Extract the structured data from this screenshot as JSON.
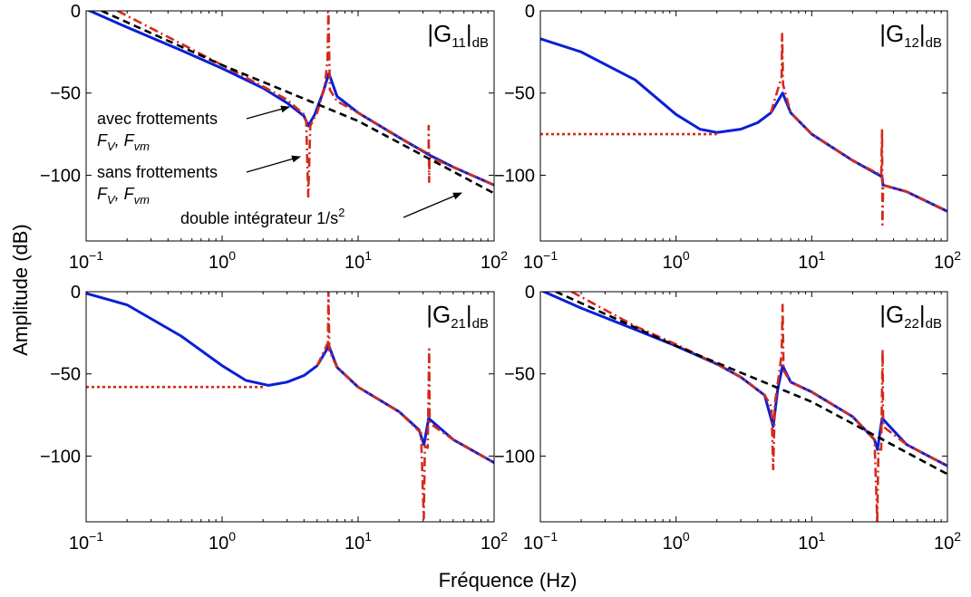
{
  "figure": {
    "ylabel": "Amplitude (dB)",
    "xlabel": "Fréquence (Hz)"
  },
  "chart_data": [
    {
      "type": "line",
      "title": "|G11|dB",
      "xscale": "log",
      "xlim": [
        0.1,
        100
      ],
      "ylim": [
        -140,
        0
      ],
      "xticks": [
        "10^-1",
        "10^0",
        "10^1",
        "10^2"
      ],
      "yticks": [
        "0",
        "-50",
        "-100"
      ],
      "annotations": [
        "avec frottements Fv, Fvm",
        "sans frottements Fv, Fvm",
        "double intégrateur 1/s2"
      ],
      "series": [
        {
          "color": "#0a1fd6",
          "style": "solid",
          "points": [
            [
              0.1,
              1
            ],
            [
              0.2,
              -10
            ],
            [
              0.5,
              -24
            ],
            [
              1,
              -35
            ],
            [
              2,
              -47
            ],
            [
              3,
              -56
            ],
            [
              4,
              -64
            ],
            [
              4.3,
              -70
            ],
            [
              4.8,
              -63
            ],
            [
              5.5,
              -50
            ],
            [
              6.1,
              -38
            ],
            [
              7,
              -52
            ],
            [
              10,
              -62
            ],
            [
              20,
              -77
            ],
            [
              34,
              -88
            ],
            [
              50,
              -95
            ],
            [
              100,
              -106
            ]
          ]
        },
        {
          "color": "#d42a1a",
          "style": "dashdot",
          "points": [
            [
              0.17,
              0
            ],
            [
              0.5,
              -20
            ],
            [
              1,
              -33
            ],
            [
              2,
              -46
            ],
            [
              3,
              -54
            ],
            [
              4,
              -63
            ],
            [
              4.15,
              -67
            ],
            [
              4.3,
              -113
            ],
            [
              4.45,
              -70
            ],
            [
              5,
              -62
            ],
            [
              5.7,
              -45
            ],
            [
              5.95,
              -30
            ],
            [
              6.05,
              0
            ],
            [
              6.2,
              -48
            ],
            [
              7,
              -55
            ],
            [
              10,
              -62
            ],
            [
              20,
              -77
            ],
            [
              33,
              -87
            ],
            [
              33,
              -70
            ],
            [
              33.3,
              -104
            ],
            [
              33.5,
              -89
            ],
            [
              50,
              -95
            ],
            [
              100,
              -106
            ]
          ]
        },
        {
          "color": "#000000",
          "style": "dashed",
          "points": [
            [
              0.13,
              0
            ],
            [
              1,
              -33
            ],
            [
              10,
              -67
            ],
            [
              100,
              -111
            ]
          ]
        }
      ]
    },
    {
      "type": "line",
      "title": "|G12|dB",
      "xscale": "log",
      "xlim": [
        0.1,
        100
      ],
      "ylim": [
        -140,
        0
      ],
      "xticks": [
        "10^-1",
        "10^0",
        "10^1",
        "10^2"
      ],
      "yticks": [
        "0",
        "-50",
        "-100"
      ],
      "series": [
        {
          "color": "#0a1fd6",
          "style": "solid",
          "points": [
            [
              0.1,
              -17
            ],
            [
              0.2,
              -25
            ],
            [
              0.5,
              -42
            ],
            [
              1,
              -63
            ],
            [
              1.5,
              -72
            ],
            [
              2,
              -74
            ],
            [
              3,
              -72
            ],
            [
              4,
              -68
            ],
            [
              5,
              -62
            ],
            [
              6.1,
              -50
            ],
            [
              7,
              -62
            ],
            [
              10,
              -75
            ],
            [
              20,
              -91
            ],
            [
              33,
              -101
            ],
            [
              33.5,
              -106
            ],
            [
              50,
              -110
            ],
            [
              100,
              -122
            ]
          ]
        },
        {
          "color": "#d42a1a",
          "style": "dotted",
          "points": [
            [
              0.1,
              -75
            ],
            [
              2,
              -75
            ]
          ]
        },
        {
          "color": "#d42a1a",
          "style": "dashdot",
          "points": [
            [
              5,
              -62
            ],
            [
              6,
              -40
            ],
            [
              6.05,
              -14
            ],
            [
              6.15,
              -45
            ],
            [
              7,
              -62
            ],
            [
              10,
              -75
            ],
            [
              20,
              -91
            ],
            [
              32.5,
              -100
            ],
            [
              33,
              -72
            ],
            [
              33.2,
              -130
            ],
            [
              33.6,
              -106
            ],
            [
              50,
              -110
            ],
            [
              100,
              -122
            ]
          ]
        }
      ]
    },
    {
      "type": "line",
      "title": "|G21|dB",
      "xscale": "log",
      "xlim": [
        0.1,
        100
      ],
      "ylim": [
        -140,
        0
      ],
      "xticks": [
        "10^-1",
        "10^0",
        "10^1",
        "10^2"
      ],
      "yticks": [
        "0",
        "-50",
        "-100"
      ],
      "series": [
        {
          "color": "#0a1fd6",
          "style": "solid",
          "points": [
            [
              0.1,
              -1
            ],
            [
              0.2,
              -8
            ],
            [
              0.5,
              -27
            ],
            [
              1,
              -45
            ],
            [
              1.5,
              -54
            ],
            [
              2.2,
              -57
            ],
            [
              3,
              -55
            ],
            [
              4,
              -51
            ],
            [
              5,
              -45
            ],
            [
              6.1,
              -33
            ],
            [
              7,
              -46
            ],
            [
              10,
              -58
            ],
            [
              20,
              -73
            ],
            [
              28,
              -84
            ],
            [
              30.5,
              -93
            ],
            [
              33,
              -77
            ],
            [
              50,
              -90
            ],
            [
              100,
              -104
            ]
          ]
        },
        {
          "color": "#d42a1a",
          "style": "dotted",
          "points": [
            [
              0.1,
              -58
            ],
            [
              2,
              -58
            ]
          ]
        },
        {
          "color": "#d42a1a",
          "style": "dashdot",
          "points": [
            [
              5,
              -45
            ],
            [
              6,
              -31
            ],
            [
              6.05,
              0
            ],
            [
              6.15,
              -36
            ],
            [
              7,
              -46
            ],
            [
              10,
              -58
            ],
            [
              20,
              -73
            ],
            [
              29,
              -86
            ],
            [
              30.4,
              -138
            ],
            [
              31,
              -94
            ],
            [
              32.5,
              -95
            ],
            [
              33.3,
              -35
            ],
            [
              33.6,
              -80
            ],
            [
              50,
              -90
            ],
            [
              100,
              -104
            ]
          ]
        }
      ]
    },
    {
      "type": "line",
      "title": "|G22|dB",
      "xscale": "log",
      "xlim": [
        0.1,
        100
      ],
      "ylim": [
        -140,
        0
      ],
      "xticks": [
        "10^-1",
        "10^0",
        "10^1",
        "10^2"
      ],
      "yticks": [
        "0",
        "-50",
        "-100"
      ],
      "series": [
        {
          "color": "#0a1fd6",
          "style": "solid",
          "points": [
            [
              0.1,
              1
            ],
            [
              0.2,
              -10
            ],
            [
              0.5,
              -23
            ],
            [
              1,
              -33
            ],
            [
              2,
              -44
            ],
            [
              3,
              -52
            ],
            [
              4.5,
              -63
            ],
            [
              5.2,
              -82
            ],
            [
              5.6,
              -60
            ],
            [
              6.1,
              -45
            ],
            [
              7,
              -55
            ],
            [
              10,
              -61
            ],
            [
              20,
              -76
            ],
            [
              29,
              -90
            ],
            [
              30.5,
              -96
            ],
            [
              33,
              -77
            ],
            [
              50,
              -93
            ],
            [
              100,
              -106
            ]
          ]
        },
        {
          "color": "#d42a1a",
          "style": "dashdot",
          "points": [
            [
              0.17,
              0
            ],
            [
              0.5,
              -21
            ],
            [
              1,
              -32
            ],
            [
              2,
              -44
            ],
            [
              3,
              -52
            ],
            [
              4.5,
              -63
            ],
            [
              5.05,
              -70
            ],
            [
              5.2,
              -108
            ],
            [
              5.35,
              -68
            ],
            [
              5.7,
              -52
            ],
            [
              6,
              -38
            ],
            [
              6.1,
              -8
            ],
            [
              6.2,
              -48
            ],
            [
              7,
              -55
            ],
            [
              10,
              -61
            ],
            [
              20,
              -76
            ],
            [
              29,
              -90
            ],
            [
              30.4,
              -140
            ],
            [
              31,
              -96
            ],
            [
              32.5,
              -96
            ],
            [
              33.3,
              -35
            ],
            [
              33.6,
              -82
            ],
            [
              50,
              -93
            ],
            [
              100,
              -106
            ]
          ]
        },
        {
          "color": "#000000",
          "style": "dashed",
          "points": [
            [
              0.13,
              0
            ],
            [
              1,
              -33
            ],
            [
              10,
              -67
            ],
            [
              100,
              -111
            ]
          ]
        }
      ]
    }
  ]
}
